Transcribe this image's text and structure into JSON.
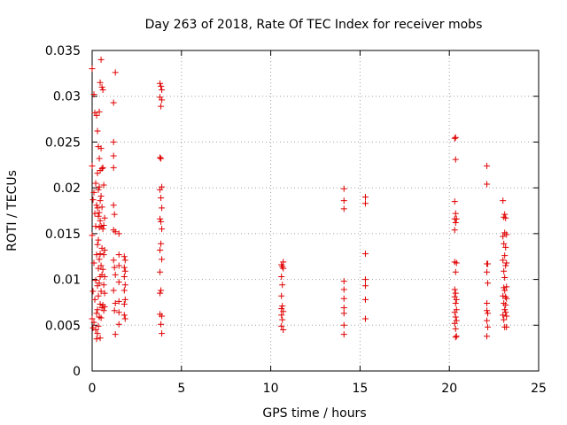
{
  "chart_data": {
    "type": "scatter",
    "title": "Day 263 of 2018, Rate Of TEC Index for receiver mobs",
    "xlabel": "GPS time / hours",
    "ylabel": "ROTI / TECUs",
    "xlim": [
      0,
      25
    ],
    "ylim": [
      0,
      0.035
    ],
    "xticks": [
      0,
      5,
      10,
      15,
      20,
      25
    ],
    "xtick_labels": [
      "0",
      "5",
      "10",
      "15",
      "20",
      "25"
    ],
    "yticks": [
      0,
      0.005,
      0.01,
      0.015,
      0.02,
      0.025,
      0.03,
      0.035
    ],
    "ytick_labels": [
      "0",
      "0.005",
      "0.01",
      "0.015",
      "0.02",
      "0.025",
      "0.03",
      "0.035"
    ],
    "grid": true,
    "marker": "+",
    "color": "#e00000",
    "series": [
      {
        "name": "ROTI",
        "x": [
          0.0,
          0.0,
          0.0,
          0.0,
          0.05,
          0.05,
          0.05,
          0.1,
          0.1,
          0.1,
          0.1,
          0.15,
          0.15,
          0.15,
          0.2,
          0.2,
          0.2,
          0.2,
          0.25,
          0.25,
          0.25,
          0.25,
          0.25,
          0.3,
          0.3,
          0.3,
          0.3,
          0.3,
          0.3,
          0.3,
          0.35,
          0.35,
          0.35,
          0.35,
          0.35,
          0.35,
          0.35,
          0.4,
          0.4,
          0.4,
          0.4,
          0.4,
          0.4,
          0.4,
          0.4,
          0.45,
          0.45,
          0.45,
          0.45,
          0.45,
          0.45,
          0.45,
          0.45,
          0.5,
          0.5,
          0.5,
          0.5,
          0.5,
          0.5,
          0.5,
          0.55,
          0.55,
          0.55,
          0.55,
          0.55,
          0.55,
          0.6,
          0.6,
          0.6,
          0.6,
          0.6,
          0.65,
          0.65,
          0.65,
          0.65,
          0.65,
          0.7,
          0.7,
          0.7,
          0.7,
          0.7,
          1.2,
          1.2,
          1.2,
          1.2,
          1.2,
          1.2,
          1.2,
          1.2,
          1.25,
          1.25,
          1.25,
          1.3,
          1.3,
          1.3,
          1.3,
          1.3,
          1.5,
          1.5,
          1.5,
          1.5,
          1.5,
          1.5,
          1.5,
          1.8,
          1.8,
          1.8,
          1.8,
          1.8,
          1.8,
          1.85,
          1.85,
          1.85,
          1.85,
          1.85,
          3.8,
          3.8,
          3.8,
          3.8,
          3.8,
          3.8,
          3.8,
          3.8,
          3.8,
          3.85,
          3.85,
          3.85,
          3.85,
          3.85,
          3.85,
          3.85,
          3.85,
          3.9,
          3.9,
          3.9,
          3.9,
          3.9,
          3.9,
          3.9,
          3.9,
          10.6,
          10.6,
          10.6,
          10.6,
          10.6,
          10.6,
          10.65,
          10.65,
          10.65,
          10.65,
          10.7,
          10.7,
          10.7,
          10.7,
          14.1,
          14.1,
          14.1,
          14.1,
          14.1,
          14.1,
          14.1,
          14.1,
          14.1,
          14.1,
          15.3,
          15.3,
          15.3,
          15.3,
          15.3,
          15.3,
          15.3,
          20.3,
          20.3,
          20.3,
          20.3,
          20.3,
          20.3,
          20.3,
          20.3,
          20.3,
          20.35,
          20.35,
          20.35,
          20.35,
          20.35,
          20.35,
          20.35,
          20.35,
          20.35,
          20.35,
          20.4,
          20.4,
          20.4,
          20.4,
          20.4,
          20.4,
          22.1,
          22.1,
          22.1,
          22.1,
          22.1,
          22.1,
          22.1,
          22.1,
          22.15,
          22.15,
          22.15,
          22.15,
          23.0,
          23.0,
          23.0,
          23.0,
          23.0,
          23.05,
          23.05,
          23.05,
          23.05,
          23.05,
          23.05,
          23.1,
          23.1,
          23.1,
          23.1,
          23.1,
          23.1,
          23.1,
          23.15,
          23.15,
          23.15,
          23.15,
          23.15,
          23.15,
          23.2,
          23.2,
          23.2,
          23.2,
          23.2,
          23.2
        ],
        "y": [
          0.033,
          0.0224,
          0.0148,
          0.0057,
          0.0187,
          0.0087,
          0.0047,
          0.0302,
          0.0195,
          0.0118,
          0.0053,
          0.0282,
          0.0172,
          0.0078,
          0.0205,
          0.0158,
          0.0099,
          0.0045,
          0.0279,
          0.0181,
          0.0127,
          0.0063,
          0.0035,
          0.0262,
          0.0216,
          0.0178,
          0.0138,
          0.0093,
          0.0067,
          0.0041,
          0.0245,
          0.0198,
          0.0169,
          0.0143,
          0.0112,
          0.0082,
          0.0049,
          0.0283,
          0.0232,
          0.0201,
          0.0173,
          0.0157,
          0.0122,
          0.0096,
          0.0059,
          0.0315,
          0.0219,
          0.0186,
          0.0164,
          0.0128,
          0.0103,
          0.0073,
          0.0036,
          0.034,
          0.0243,
          0.0191,
          0.0158,
          0.0115,
          0.0087,
          0.0058,
          0.031,
          0.0221,
          0.0179,
          0.0134,
          0.0105,
          0.0069,
          0.0307,
          0.0222,
          0.0155,
          0.0111,
          0.0072,
          0.0203,
          0.0159,
          0.0127,
          0.0094,
          0.0066,
          0.0167,
          0.0132,
          0.0103,
          0.0085,
          0.007,
          0.0293,
          0.025,
          0.0235,
          0.0222,
          0.0181,
          0.0154,
          0.0121,
          0.0088,
          0.0171,
          0.0113,
          0.0066,
          0.0326,
          0.0152,
          0.0105,
          0.0074,
          0.004,
          0.015,
          0.0127,
          0.0115,
          0.0097,
          0.0076,
          0.0064,
          0.0051,
          0.0125,
          0.0113,
          0.0103,
          0.0088,
          0.0073,
          0.0061,
          0.0121,
          0.0109,
          0.0094,
          0.0078,
          0.0057,
          0.0314,
          0.0299,
          0.0233,
          0.0198,
          0.0166,
          0.0132,
          0.0108,
          0.0085,
          0.0062,
          0.0311,
          0.0289,
          0.0232,
          0.0189,
          0.0163,
          0.0139,
          0.0088,
          0.0051,
          0.0307,
          0.0296,
          0.0201,
          0.0178,
          0.0155,
          0.0122,
          0.006,
          0.0041,
          0.0116,
          0.0103,
          0.0082,
          0.0068,
          0.0061,
          0.0049,
          0.0114,
          0.0094,
          0.0071,
          0.0056,
          0.0119,
          0.0112,
          0.0065,
          0.0045,
          0.0199,
          0.0186,
          0.0177,
          0.0098,
          0.0089,
          0.0079,
          0.0069,
          0.0063,
          0.005,
          0.004,
          0.019,
          0.0183,
          0.0128,
          0.01,
          0.0093,
          0.0078,
          0.0057,
          0.0254,
          0.0185,
          0.0166,
          0.0154,
          0.0119,
          0.0089,
          0.0081,
          0.0064,
          0.0052,
          0.0255,
          0.0231,
          0.0172,
          0.0162,
          0.0108,
          0.0085,
          0.0074,
          0.0059,
          0.0046,
          0.0037,
          0.0166,
          0.0118,
          0.0078,
          0.0067,
          0.0055,
          0.0038,
          0.0224,
          0.0204,
          0.0117,
          0.0108,
          0.0074,
          0.0066,
          0.0055,
          0.0038,
          0.0117,
          0.0096,
          0.0063,
          0.0048,
          0.0186,
          0.0147,
          0.0121,
          0.0082,
          0.0061,
          0.0168,
          0.0139,
          0.0109,
          0.0091,
          0.0074,
          0.0056,
          0.0171,
          0.0151,
          0.0126,
          0.0102,
          0.0088,
          0.0067,
          0.0048,
          0.0167,
          0.0135,
          0.0115,
          0.0081,
          0.0072,
          0.0064,
          0.0149,
          0.0118,
          0.0092,
          0.0079,
          0.006,
          0.0048
        ]
      }
    ]
  }
}
